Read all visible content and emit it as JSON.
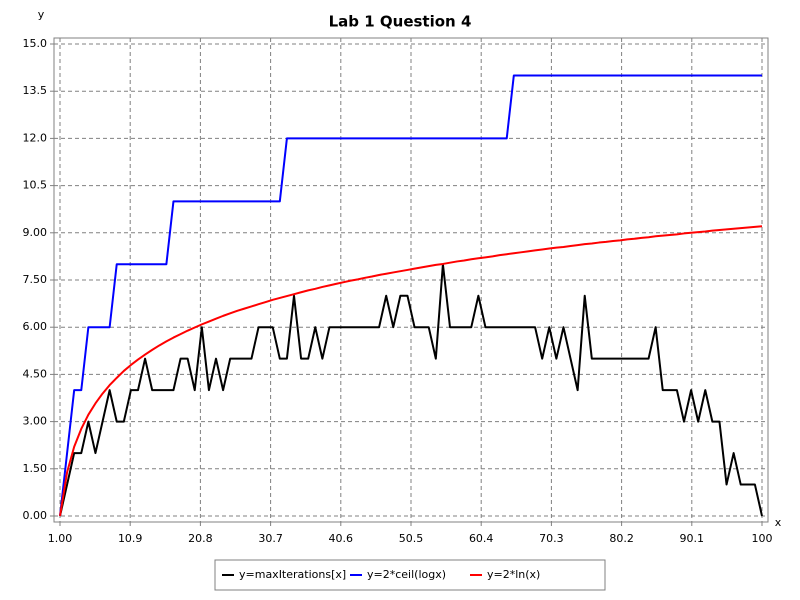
{
  "chart_data": {
    "type": "line",
    "title": "Lab 1 Question 4",
    "xlabel": "x",
    "ylabel": "y",
    "x": [
      1,
      2,
      3,
      4,
      5,
      6,
      7,
      8,
      9,
      10,
      11,
      12,
      13,
      14,
      15,
      16,
      17,
      18,
      19,
      20,
      21,
      22,
      23,
      24,
      25,
      26,
      27,
      28,
      29,
      30,
      31,
      32,
      33,
      34,
      35,
      36,
      37,
      38,
      39,
      40,
      41,
      42,
      43,
      44,
      45,
      46,
      47,
      48,
      49,
      50,
      51,
      52,
      53,
      54,
      55,
      56,
      57,
      58,
      59,
      60,
      61,
      62,
      63,
      64,
      65,
      66,
      67,
      68,
      69,
      70,
      71,
      72,
      73,
      74,
      75,
      76,
      77,
      78,
      79,
      80,
      81,
      82,
      83,
      84,
      85,
      86,
      87,
      88,
      89,
      90,
      91,
      92,
      93,
      94,
      95,
      96,
      97,
      98,
      99,
      100
    ],
    "series": [
      {
        "name": "y=maxIterations[x]",
        "color": "#000000",
        "values": [
          0,
          1,
          2,
          2,
          3,
          2,
          3,
          4,
          3,
          3,
          4,
          4,
          5,
          4,
          4,
          4,
          4,
          5,
          5,
          4,
          6,
          4,
          5,
          4,
          5,
          5,
          5,
          5,
          6,
          6,
          6,
          5,
          5,
          7,
          5,
          5,
          6,
          5,
          6,
          6,
          6,
          6,
          6,
          6,
          6,
          6,
          7,
          6,
          7,
          7,
          6,
          6,
          6,
          5,
          8,
          6,
          6,
          6,
          6,
          7,
          6,
          6,
          6,
          6,
          6,
          6,
          6,
          6,
          5,
          6,
          5,
          6,
          5,
          4,
          7,
          5,
          5,
          5,
          5,
          5,
          5,
          5,
          5,
          5,
          6,
          4,
          4,
          4,
          3,
          4,
          3,
          4,
          3,
          3,
          1,
          2,
          1,
          1,
          1,
          0
        ]
      },
      {
        "name": "y=2*ceil(logx)",
        "color": "#0000ff",
        "values": [
          0,
          2,
          4,
          4,
          6,
          6,
          6,
          6,
          8,
          8,
          8,
          8,
          8,
          8,
          8,
          8,
          10,
          10,
          10,
          10,
          10,
          10,
          10,
          10,
          10,
          10,
          10,
          10,
          10,
          10,
          10,
          10,
          12,
          12,
          12,
          12,
          12,
          12,
          12,
          12,
          12,
          12,
          12,
          12,
          12,
          12,
          12,
          12,
          12,
          12,
          12,
          12,
          12,
          12,
          12,
          12,
          12,
          12,
          12,
          12,
          12,
          12,
          12,
          12,
          14,
          14,
          14,
          14,
          14,
          14,
          14,
          14,
          14,
          14,
          14,
          14,
          14,
          14,
          14,
          14,
          14,
          14,
          14,
          14,
          14,
          14,
          14,
          14,
          14,
          14,
          14,
          14,
          14,
          14,
          14,
          14,
          14,
          14,
          14,
          14
        ]
      },
      {
        "name": "y=2*ln(x)",
        "color": "#ff0000",
        "values": [
          0,
          1.39,
          2.2,
          2.77,
          3.22,
          3.58,
          3.89,
          4.16,
          4.39,
          4.61,
          4.8,
          4.97,
          5.13,
          5.28,
          5.42,
          5.55,
          5.67,
          5.78,
          5.89,
          5.99,
          6.09,
          6.18,
          6.27,
          6.36,
          6.44,
          6.52,
          6.59,
          6.66,
          6.73,
          6.8,
          6.87,
          6.93,
          6.99,
          7.05,
          7.11,
          7.17,
          7.22,
          7.28,
          7.33,
          7.38,
          7.43,
          7.48,
          7.52,
          7.57,
          7.61,
          7.66,
          7.7,
          7.74,
          7.78,
          7.82,
          7.86,
          7.9,
          7.94,
          7.98,
          8.01,
          8.05,
          8.09,
          8.12,
          8.16,
          8.19,
          8.22,
          8.25,
          8.29,
          8.32,
          8.35,
          8.38,
          8.41,
          8.44,
          8.47,
          8.5,
          8.53,
          8.55,
          8.58,
          8.61,
          8.64,
          8.66,
          8.69,
          8.71,
          8.74,
          8.76,
          8.79,
          8.81,
          8.84,
          8.86,
          8.89,
          8.91,
          8.93,
          8.95,
          8.98,
          9,
          9.02,
          9.04,
          9.07,
          9.09,
          9.11,
          9.13,
          9.15,
          9.17,
          9.19,
          9.21
        ]
      }
    ],
    "xlim": [
      1,
      100
    ],
    "xticks": [
      {
        "value": 1,
        "label": "1.00"
      },
      10.9,
      20.8,
      30.7,
      40.6,
      50.5,
      60.4,
      70.3,
      80.2,
      90.1,
      100
    ],
    "ylim": [
      0,
      15
    ],
    "yticks": [
      {
        "value": 0,
        "label": "0.00"
      },
      {
        "value": 1.5,
        "label": "1.50"
      },
      {
        "value": 3,
        "label": "3.00"
      },
      {
        "value": 4.5,
        "label": "4.50"
      },
      {
        "value": 6,
        "label": "6.00"
      },
      {
        "value": 7.5,
        "label": "7.50"
      },
      {
        "value": 9,
        "label": "9.00"
      },
      10.5,
      {
        "value": 12,
        "label": "12.0"
      },
      13.5,
      {
        "value": 15,
        "label": "15.0"
      }
    ],
    "grid": true,
    "legend": "bottom"
  }
}
